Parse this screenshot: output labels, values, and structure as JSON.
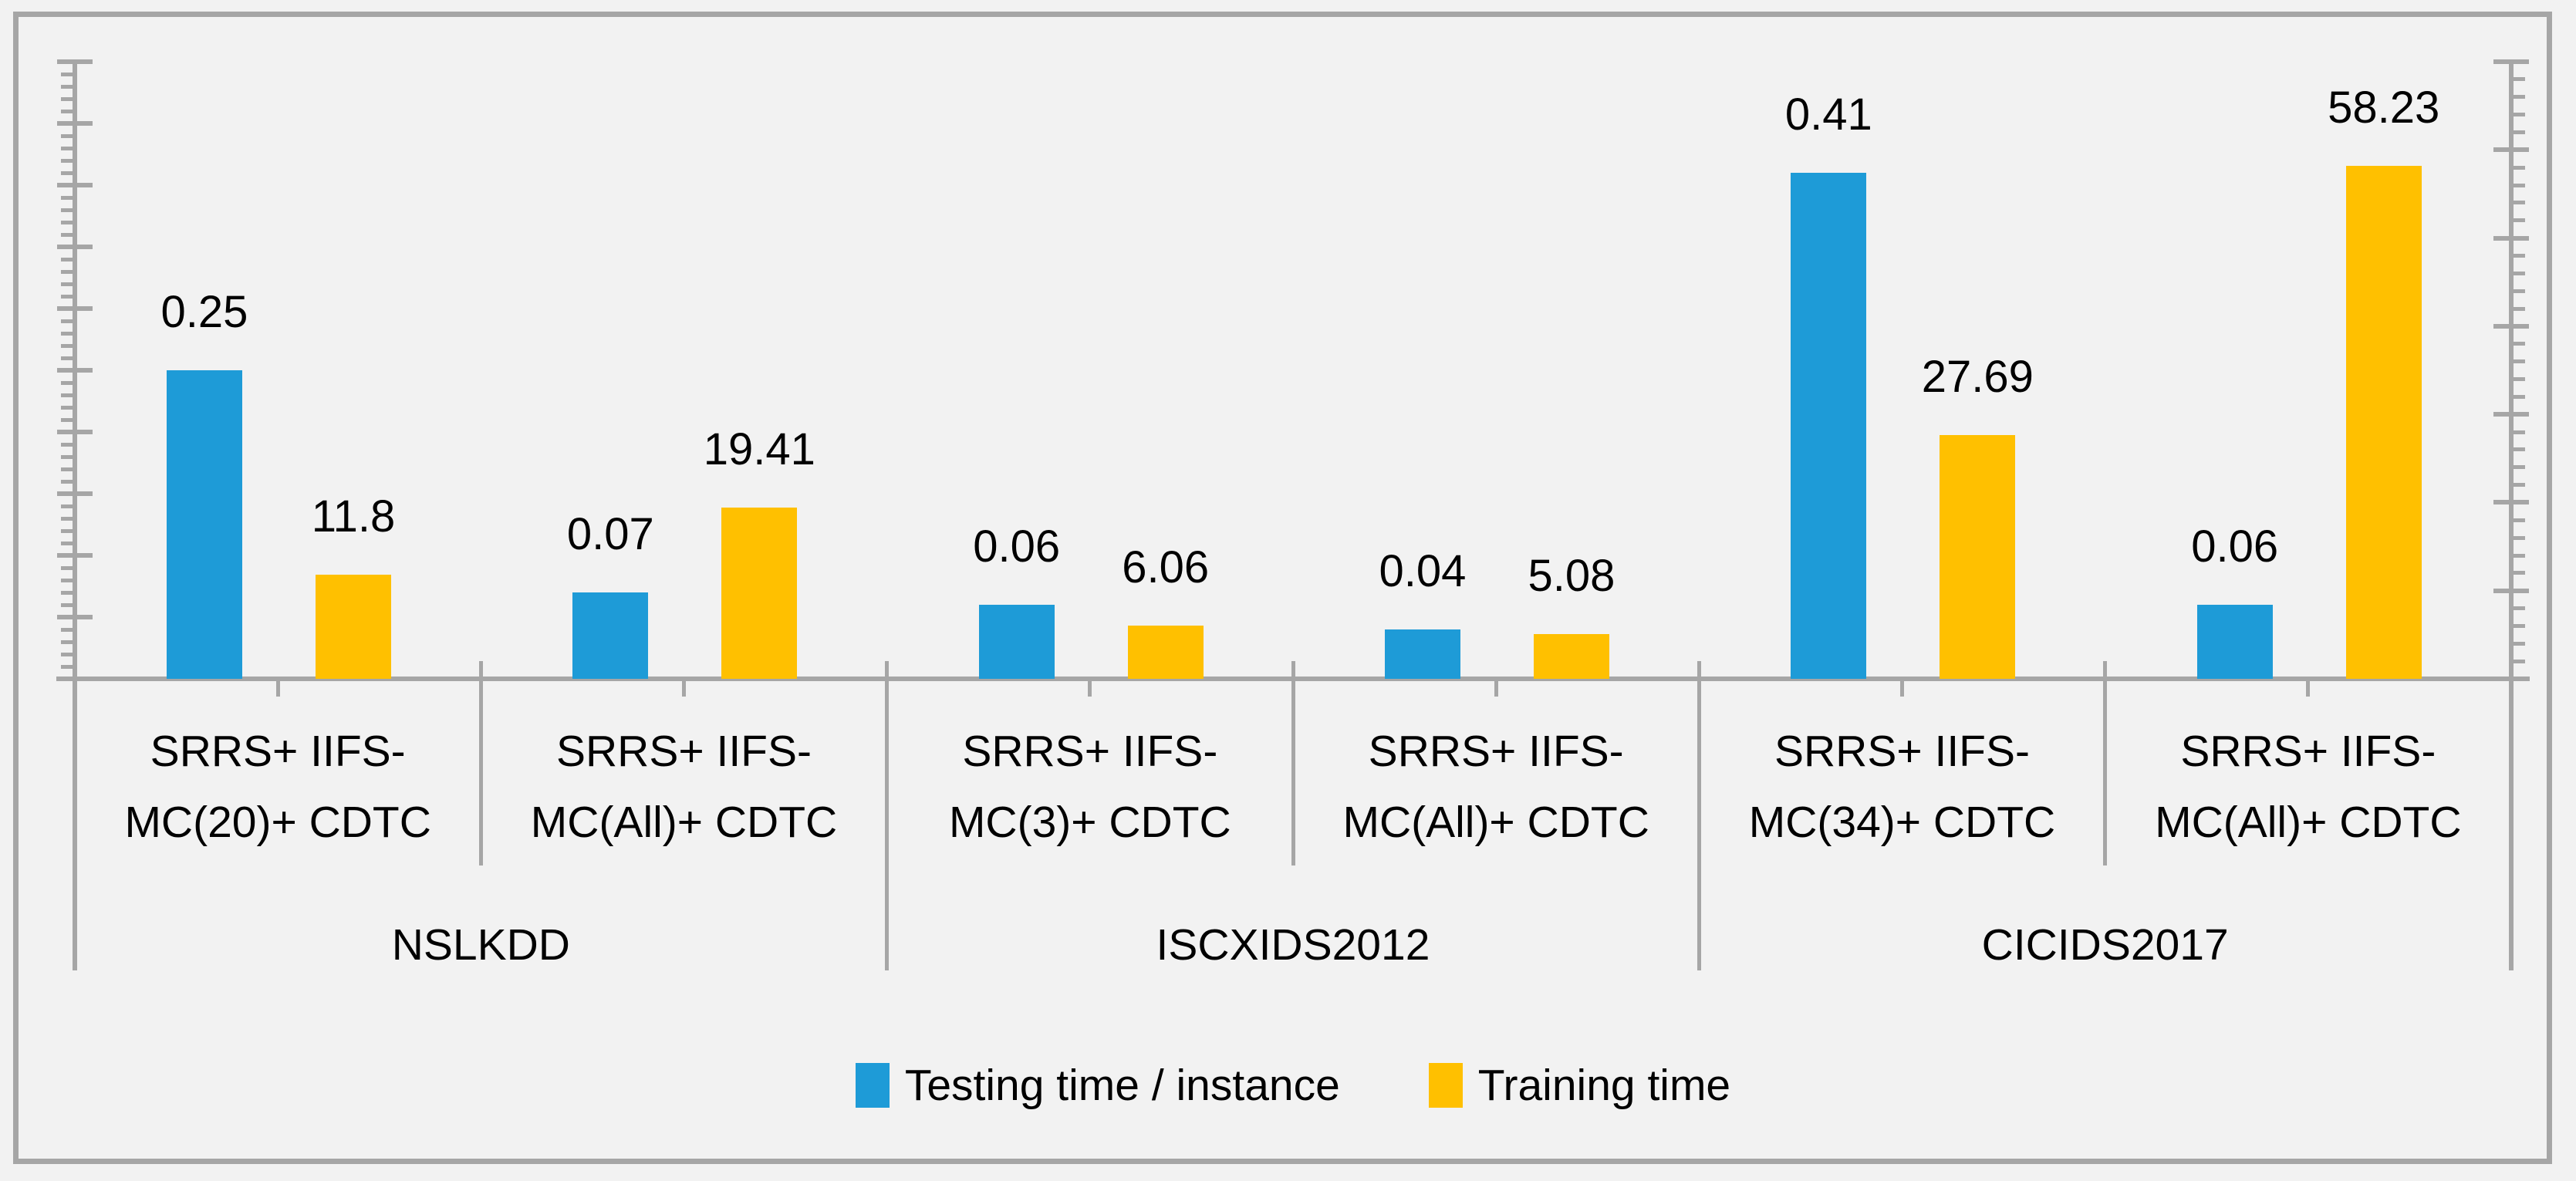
{
  "chart_data": {
    "type": "bar",
    "title": "",
    "legend_position": "bottom-center",
    "grid": "off",
    "series": [
      {
        "name": "Testing time / instance",
        "color": "#1E9BD7",
        "axis": "left"
      },
      {
        "name": "Training time",
        "color": "#FFC000",
        "axis": "right"
      }
    ],
    "left_axis": {
      "min": 0,
      "max": 0.5,
      "major_interval": 0.05,
      "minor_interval": 0.01,
      "tick_labels_visible": false
    },
    "right_axis": {
      "min": 0,
      "max": 70,
      "major_interval": 10,
      "minor_interval": 2,
      "tick_labels_visible": false
    },
    "groups": [
      {
        "dataset": "NSLKDD",
        "categories": [
          {
            "label": "SRRS+ IIFS-\nMC(20)+ CDTC",
            "testing_time": "0.25",
            "training_time": "11.8"
          },
          {
            "label": "SRRS+ IIFS-\nMC(All)+ CDTC",
            "testing_time": "0.07",
            "training_time": "19.41"
          }
        ]
      },
      {
        "dataset": "ISCXIDS2012",
        "categories": [
          {
            "label": "SRRS+ IIFS-\nMC(3)+ CDTC",
            "testing_time": "0.06",
            "training_time": "6.06"
          },
          {
            "label": "SRRS+ IIFS-\nMC(All)+ CDTC",
            "testing_time": "0.04",
            "training_time": "5.08"
          }
        ]
      },
      {
        "dataset": "CICIDS2017",
        "categories": [
          {
            "label": "SRRS+ IIFS-\nMC(34)+ CDTC",
            "testing_time": "0.41",
            "training_time": "27.69"
          },
          {
            "label": "SRRS+ IIFS-\nMC(All)+ CDTC",
            "testing_time": "0.06",
            "training_time": "58.23"
          }
        ]
      }
    ],
    "colors": {
      "background": "#F2F2F2",
      "axis": "#A6A6A6",
      "border": "#A6A6A6",
      "text": "#000000"
    }
  }
}
